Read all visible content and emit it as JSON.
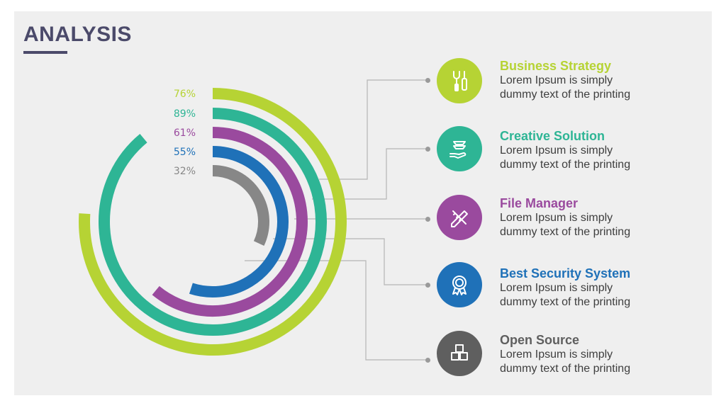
{
  "title": "ANALYSIS",
  "chart_data": {
    "type": "radial-bar",
    "unit": "%",
    "series": [
      {
        "label": "76%",
        "value": 76,
        "color": "#b6d334"
      },
      {
        "label": "89%",
        "value": 89,
        "color": "#2eb595"
      },
      {
        "label": "61%",
        "value": 61,
        "color": "#9a4a9e"
      },
      {
        "label": "55%",
        "value": 55,
        "color": "#1f71b8"
      },
      {
        "label": "32%",
        "value": 32,
        "color": "#878787"
      }
    ]
  },
  "items": [
    {
      "title": "Business Strategy",
      "desc1": "Lorem Ipsum is simply",
      "desc2": "dummy text of the printing",
      "color": "#b6d334",
      "icon": "tools-icon"
    },
    {
      "title": "Creative Solution",
      "desc1": "Lorem Ipsum is simply",
      "desc2": "dummy text of the printing",
      "color": "#2eb595",
      "icon": "hand-stack-icon"
    },
    {
      "title": "File Manager",
      "desc1": "Lorem Ipsum is simply",
      "desc2": "dummy text of the printing",
      "color": "#9a4a9e",
      "icon": "pencil-ruler-icon"
    },
    {
      "title": "Best Security System",
      "desc1": "Lorem Ipsum is simply",
      "desc2": "dummy text of the printing",
      "color": "#1f71b8",
      "icon": "badge-icon"
    },
    {
      "title": "Open Source",
      "desc1": "Lorem Ipsum is simply",
      "desc2": "dummy text of the printing",
      "color": "#5f5f5f",
      "icon": "cubes-icon"
    }
  ]
}
